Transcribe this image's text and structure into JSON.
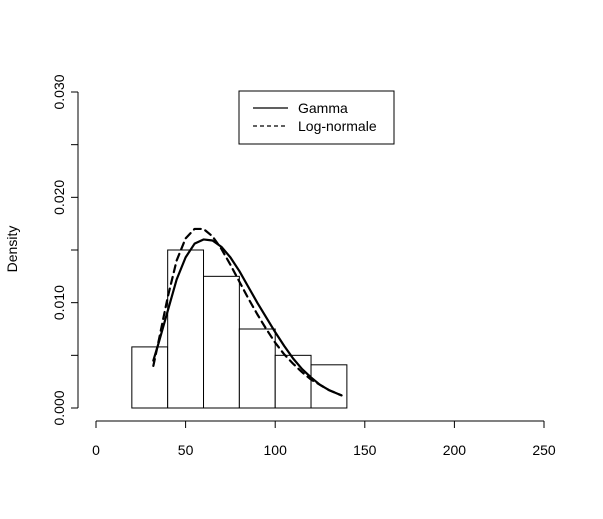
{
  "chart_data": {
    "type": "histogram",
    "title": "",
    "xlabel": "",
    "ylabel": "Density",
    "xlim": [
      0,
      250
    ],
    "ylim": [
      0,
      0.03
    ],
    "x_ticks": [
      0,
      50,
      100,
      150,
      200,
      250
    ],
    "x_tick_labels": [
      "0",
      "50",
      "100",
      "150",
      "200",
      "250"
    ],
    "y_ticks": [
      0,
      0.005,
      0.01,
      0.015,
      0.02,
      0.025,
      0.03
    ],
    "y_tick_labels": [
      "0.000",
      "",
      "0.010",
      "",
      "0.020",
      "",
      "0.030"
    ],
    "bins": [
      {
        "start": 20,
        "end": 40,
        "density": 0.0058
      },
      {
        "start": 40,
        "end": 60,
        "density": 0.015
      },
      {
        "start": 60,
        "end": 80,
        "density": 0.0125
      },
      {
        "start": 80,
        "end": 100,
        "density": 0.0075
      },
      {
        "start": 100,
        "end": 120,
        "density": 0.005
      },
      {
        "start": 120,
        "end": 140,
        "density": 0.0041
      }
    ],
    "series": [
      {
        "name": "Gamma",
        "style": "solid",
        "x": [
          32,
          35,
          40,
          45,
          50,
          55,
          60,
          65,
          70,
          75,
          80,
          85,
          90,
          95,
          100,
          105,
          110,
          115,
          120,
          125,
          130,
          137
        ],
        "y": [
          0.0045,
          0.0062,
          0.0092,
          0.0122,
          0.0143,
          0.0156,
          0.016,
          0.0159,
          0.0153,
          0.0143,
          0.013,
          0.0115,
          0.01,
          0.0086,
          0.0072,
          0.0059,
          0.0047,
          0.0037,
          0.0029,
          0.0022,
          0.0017,
          0.0012
        ]
      },
      {
        "name": "Log-normale",
        "style": "dashed",
        "x": [
          32,
          35,
          40,
          45,
          50,
          55,
          60,
          65,
          70,
          75,
          80,
          85,
          90,
          95,
          100,
          105,
          110,
          115,
          120,
          125,
          130,
          137
        ],
        "y": [
          0.004,
          0.0064,
          0.0105,
          0.014,
          0.0161,
          0.017,
          0.017,
          0.0163,
          0.0151,
          0.0136,
          0.012,
          0.0104,
          0.0089,
          0.0075,
          0.0062,
          0.0051,
          0.0042,
          0.0034,
          0.0027,
          0.0022,
          0.0017,
          0.0012
        ]
      }
    ],
    "legend": {
      "position": "top-center",
      "entries": [
        {
          "label": "Gamma",
          "style": "solid"
        },
        {
          "label": "Log-normale",
          "style": "dashed"
        }
      ]
    },
    "grid": false
  }
}
